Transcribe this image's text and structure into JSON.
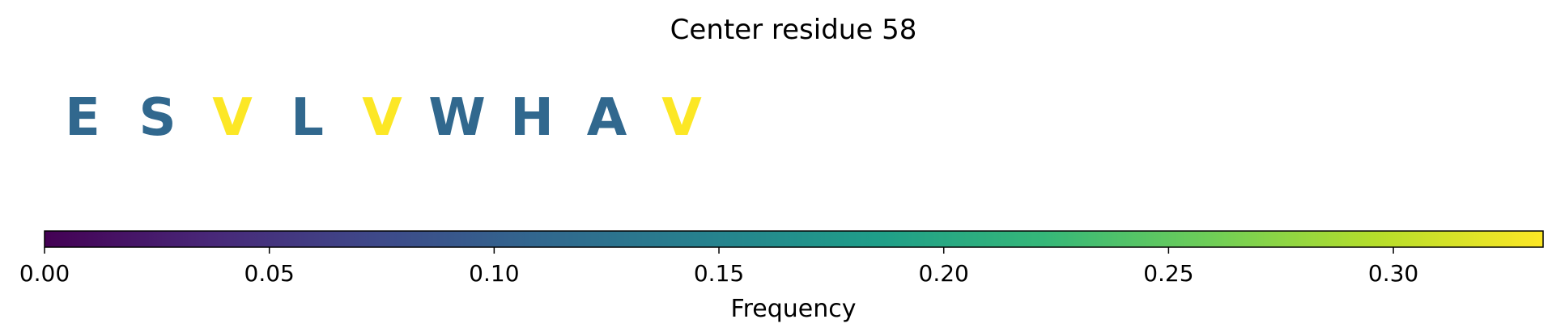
{
  "chart_data": {
    "type": "sequence-logo",
    "title": "Center residue 58",
    "residues": [
      {
        "letter": "E",
        "frequency": 0.111
      },
      {
        "letter": "S",
        "frequency": 0.111
      },
      {
        "letter": "V",
        "frequency": 0.333
      },
      {
        "letter": "L",
        "frequency": 0.111
      },
      {
        "letter": "V",
        "frequency": 0.333
      },
      {
        "letter": "W",
        "frequency": 0.111
      },
      {
        "letter": "H",
        "frequency": 0.111
      },
      {
        "letter": "A",
        "frequency": 0.111
      },
      {
        "letter": "V",
        "frequency": 0.333
      }
    ],
    "colorbar": {
      "label": "Frequency",
      "colormap": "viridis",
      "range": [
        0,
        0.3333
      ],
      "ticks": [
        0.0,
        0.05,
        0.1,
        0.15,
        0.2,
        0.25,
        0.3
      ],
      "tick_labels": [
        "0.00",
        "0.05",
        "0.10",
        "0.15",
        "0.20",
        "0.25",
        "0.30"
      ]
    }
  }
}
